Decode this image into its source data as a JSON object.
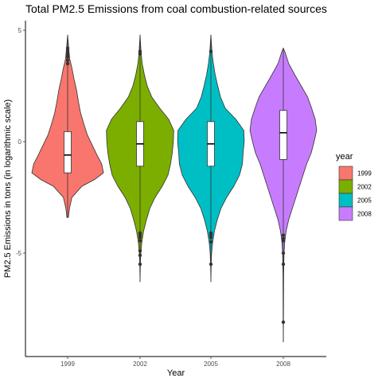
{
  "chart_data": {
    "type": "violin",
    "title": "Total PM2.5 Emissions from coal combustion-related sources",
    "xlabel": "Year",
    "ylabel": "PM2.5 Emissions in tons (in logarithmic scale)",
    "categories": [
      "1999",
      "2002",
      "2005",
      "2008"
    ],
    "y_ticks": [
      -5,
      0,
      5
    ],
    "ylim": [
      -10,
      5.2
    ],
    "legend": {
      "title": "year",
      "placement": "right"
    },
    "grid": false,
    "series": [
      {
        "name": "1999",
        "color": "#F8766D",
        "box": {
          "min": -3.4,
          "q1": -1.4,
          "median": -0.6,
          "q3": 0.45,
          "max": 4.8
        },
        "outliers": [
          3.5,
          3.65,
          3.8,
          3.9,
          4.0,
          4.1,
          4.2
        ],
        "density": [
          [
            -3.4,
            0.02
          ],
          [
            -3.0,
            0.05
          ],
          [
            -2.5,
            0.12
          ],
          [
            -2.0,
            0.4
          ],
          [
            -1.7,
            0.75
          ],
          [
            -1.4,
            1.0
          ],
          [
            -1.0,
            0.95
          ],
          [
            -0.6,
            0.82
          ],
          [
            -0.2,
            0.7
          ],
          [
            0.3,
            0.55
          ],
          [
            0.8,
            0.45
          ],
          [
            1.3,
            0.36
          ],
          [
            1.8,
            0.3
          ],
          [
            2.3,
            0.25
          ],
          [
            2.8,
            0.18
          ],
          [
            3.3,
            0.12
          ],
          [
            3.7,
            0.06
          ],
          [
            4.2,
            0.03
          ],
          [
            4.8,
            0.0
          ]
        ]
      },
      {
        "name": "2002",
        "color": "#7CAE00",
        "box": {
          "min": -6.3,
          "q1": -1.1,
          "median": -0.1,
          "q3": 0.9,
          "max": 4.8
        },
        "outliers": [
          -4.1,
          -4.2,
          -4.3,
          -4.45,
          -4.9,
          -5.1,
          -5.5,
          3.95,
          4.05
        ],
        "density": [
          [
            -6.3,
            0.0
          ],
          [
            -5.5,
            0.01
          ],
          [
            -5.0,
            0.02
          ],
          [
            -4.5,
            0.05
          ],
          [
            -4.0,
            0.1
          ],
          [
            -3.5,
            0.18
          ],
          [
            -3.0,
            0.27
          ],
          [
            -2.5,
            0.42
          ],
          [
            -2.0,
            0.62
          ],
          [
            -1.5,
            0.78
          ],
          [
            -1.0,
            0.85
          ],
          [
            -0.5,
            0.9
          ],
          [
            0.0,
            0.93
          ],
          [
            0.5,
            0.94
          ],
          [
            1.0,
            0.8
          ],
          [
            1.5,
            0.55
          ],
          [
            2.0,
            0.33
          ],
          [
            2.5,
            0.2
          ],
          [
            3.0,
            0.12
          ],
          [
            3.5,
            0.06
          ],
          [
            4.0,
            0.03
          ],
          [
            4.8,
            0.0
          ]
        ]
      },
      {
        "name": "2005",
        "color": "#00BFC4",
        "box": {
          "min": -6.3,
          "q1": -1.1,
          "median": -0.1,
          "q3": 0.9,
          "max": 4.8
        },
        "outliers": [
          -4.1,
          -4.2,
          -4.3,
          -4.5,
          -5.5,
          4.05
        ],
        "density": [
          [
            -6.3,
            0.0
          ],
          [
            -5.5,
            0.01
          ],
          [
            -5.0,
            0.02
          ],
          [
            -4.5,
            0.05
          ],
          [
            -4.0,
            0.1
          ],
          [
            -3.5,
            0.18
          ],
          [
            -3.0,
            0.28
          ],
          [
            -2.5,
            0.44
          ],
          [
            -2.0,
            0.64
          ],
          [
            -1.5,
            0.8
          ],
          [
            -1.0,
            0.88
          ],
          [
            -0.5,
            0.9
          ],
          [
            0.0,
            0.93
          ],
          [
            0.5,
            0.92
          ],
          [
            1.0,
            0.7
          ],
          [
            1.5,
            0.4
          ],
          [
            2.0,
            0.27
          ],
          [
            2.5,
            0.19
          ],
          [
            3.0,
            0.12
          ],
          [
            3.5,
            0.07
          ],
          [
            4.0,
            0.03
          ],
          [
            4.8,
            0.0
          ]
        ]
      },
      {
        "name": "2008",
        "color": "#C77CFF",
        "box": {
          "min": -9.0,
          "q1": -0.8,
          "median": 0.4,
          "q3": 1.4,
          "max": 4.2
        },
        "outliers": [
          -4.2,
          -4.35,
          -4.45,
          -5.0,
          -5.5,
          -8.1
        ],
        "density": [
          [
            -9.0,
            0.0
          ],
          [
            -8.0,
            0.005
          ],
          [
            -6.0,
            0.01
          ],
          [
            -5.0,
            0.02
          ],
          [
            -4.5,
            0.04
          ],
          [
            -4.0,
            0.08
          ],
          [
            -3.5,
            0.15
          ],
          [
            -3.0,
            0.25
          ],
          [
            -2.5,
            0.35
          ],
          [
            -2.0,
            0.45
          ],
          [
            -1.5,
            0.55
          ],
          [
            -1.0,
            0.65
          ],
          [
            -0.5,
            0.78
          ],
          [
            0.0,
            0.86
          ],
          [
            0.5,
            0.93
          ],
          [
            1.0,
            0.89
          ],
          [
            1.5,
            0.79
          ],
          [
            2.0,
            0.68
          ],
          [
            2.5,
            0.5
          ],
          [
            3.0,
            0.32
          ],
          [
            3.5,
            0.15
          ],
          [
            4.0,
            0.05
          ],
          [
            4.2,
            0.0
          ]
        ]
      }
    ]
  }
}
